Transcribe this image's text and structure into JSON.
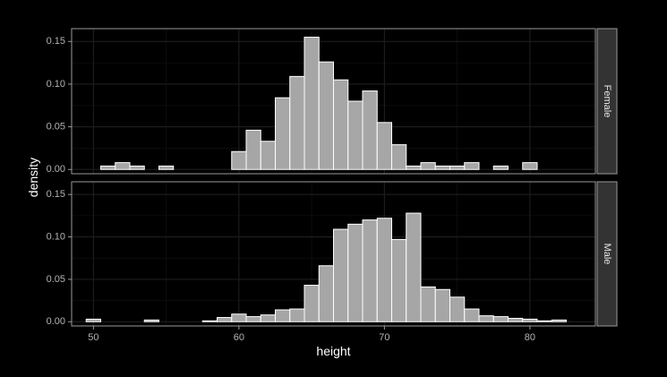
{
  "chart_data": {
    "type": "bar",
    "subtype": "faceted histogram",
    "xlabel": "height",
    "ylabel": "density",
    "xlim": [
      48.5,
      84.5
    ],
    "ylim": [
      -0.005,
      0.165
    ],
    "x_ticks": [
      50,
      60,
      70,
      80
    ],
    "y_ticks": [
      0.0,
      0.05,
      0.1,
      0.15
    ],
    "y_tick_labels": [
      "0.00",
      "0.05",
      "0.10",
      "0.15"
    ],
    "x_tick_labels": [
      "50",
      "60",
      "70",
      "80"
    ],
    "bin_start": 49.5,
    "bin_width": 1,
    "grid": true,
    "theme": "dark",
    "colors": {
      "background": "#000000",
      "panel": "#000000",
      "panel_border": "#9a9a9a",
      "grid": "#1e1e1e",
      "bar_fill": "#a6a6a6",
      "bar_edge": "#ffffff",
      "strip_fill": "#333333",
      "strip_text": "#e6e6e6"
    },
    "panels": [
      {
        "name": "Female",
        "values": [
          0.0,
          0.004,
          0.008,
          0.004,
          0.0,
          0.004,
          0.0,
          0.0,
          0.0,
          0.0,
          0.021,
          0.046,
          0.033,
          0.084,
          0.109,
          0.155,
          0.126,
          0.105,
          0.08,
          0.092,
          0.055,
          0.029,
          0.004,
          0.008,
          0.004,
          0.004,
          0.008,
          0.0,
          0.004,
          0.0,
          0.008,
          0.0,
          0.0,
          0.0
        ]
      },
      {
        "name": "Male",
        "values": [
          0.003,
          0.0,
          0.0,
          0.0,
          0.002,
          0.0,
          0.0,
          0.0,
          0.001,
          0.005,
          0.009,
          0.006,
          0.008,
          0.014,
          0.015,
          0.043,
          0.066,
          0.109,
          0.115,
          0.12,
          0.122,
          0.097,
          0.128,
          0.041,
          0.038,
          0.029,
          0.015,
          0.007,
          0.006,
          0.004,
          0.003,
          0.001,
          0.002,
          0.0
        ]
      }
    ]
  }
}
